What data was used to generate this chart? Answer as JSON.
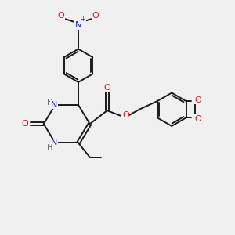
{
  "bg_color": "#f0f0f0",
  "bond_color": "#1a1a1a",
  "N_color": "#2222cc",
  "O_color": "#cc2222",
  "H_color": "#666666",
  "lw": 1.4,
  "xlim": [
    0,
    10
  ],
  "ylim": [
    0,
    10
  ]
}
